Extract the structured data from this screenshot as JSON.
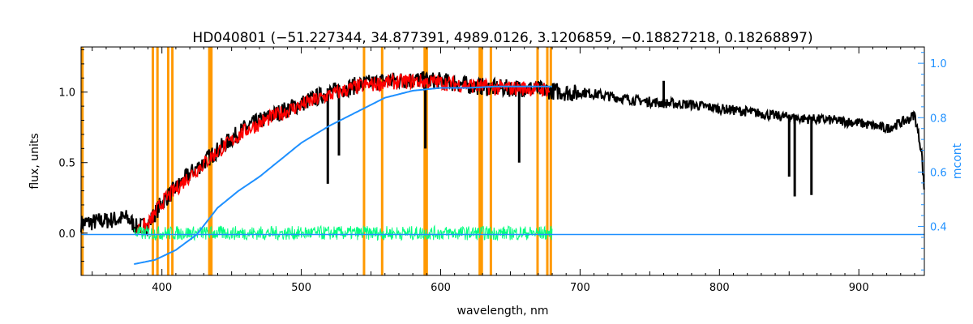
{
  "chart_data": {
    "type": "line",
    "title": "HD040801    (−51.227344, 34.877391, 4989.0126, 3.1206859, −0.18827218, 0.18268897)",
    "xlabel": "wavelength, nm",
    "ylabel": "flux, units",
    "y2label": "mcont",
    "xlim": [
      342,
      947
    ],
    "ylim": [
      -0.3,
      1.32
    ],
    "y2lim": [
      0.22,
      1.06
    ],
    "xticks": [
      400,
      500,
      600,
      700,
      800,
      900
    ],
    "yticks": [
      0.0,
      0.5,
      1.0
    ],
    "y2ticks": [
      0.4,
      0.6,
      0.8,
      1.0
    ],
    "ytick_labels": [
      "0.0",
      "0.5",
      "1.0"
    ],
    "y2tick_labels": [
      "0.4",
      "0.6",
      "0.8",
      "1.0"
    ],
    "grid": false,
    "colors": {
      "observed": "#000000",
      "model": "#ff0000",
      "residual": "#00ff7f",
      "continuum": "#1e90ff",
      "masks": "#ff9900",
      "right_axis": "#1e90ff"
    },
    "masked_lines_nm": [
      343,
      393.5,
      396.8,
      404.5,
      407.5,
      434,
      435.5,
      545,
      558,
      588.5,
      590,
      628,
      629.5,
      636,
      669.5,
      676.5,
      679
    ],
    "observed_envelope": {
      "x": [
        342,
        360,
        375,
        382,
        390,
        400,
        420,
        440,
        460,
        480,
        500,
        520,
        540,
        560,
        580,
        600,
        620,
        640,
        660,
        680,
        700,
        720,
        740,
        760,
        780,
        800,
        820,
        840,
        860,
        880,
        900,
        920,
        935,
        940,
        945,
        947
      ],
      "y": [
        0.1,
        0.12,
        0.14,
        0.07,
        0.09,
        0.25,
        0.45,
        0.62,
        0.78,
        0.87,
        0.95,
        1.03,
        1.08,
        1.11,
        1.12,
        1.11,
        1.08,
        1.06,
        1.06,
        1.04,
        1.02,
        0.99,
        0.96,
        0.94,
        0.93,
        0.9,
        0.88,
        0.85,
        0.83,
        0.82,
        0.8,
        0.76,
        0.82,
        0.86,
        0.6,
        0.3
      ]
    },
    "observed_deep_lines": [
      {
        "x": 519,
        "y": 0.35
      },
      {
        "x": 527,
        "y": 0.55
      },
      {
        "x": 589,
        "y": 0.6
      },
      {
        "x": 656.3,
        "y": 0.5
      },
      {
        "x": 760,
        "y": 1.08
      },
      {
        "x": 850,
        "y": 0.4
      },
      {
        "x": 854,
        "y": 0.26
      },
      {
        "x": 866,
        "y": 0.27
      }
    ],
    "model_envelope": {
      "x": [
        382,
        390,
        400,
        420,
        440,
        460,
        480,
        500,
        520,
        540,
        560,
        580,
        600,
        620,
        640,
        660,
        678
      ],
      "y": [
        0.05,
        0.08,
        0.24,
        0.43,
        0.6,
        0.75,
        0.85,
        0.93,
        1.0,
        1.06,
        1.09,
        1.1,
        1.09,
        1.07,
        1.05,
        1.05,
        1.04
      ]
    },
    "continuum": {
      "x": [
        380,
        395,
        410,
        425,
        440,
        455,
        470,
        485,
        500,
        520,
        540,
        560,
        580,
        600,
        620,
        640,
        660,
        680
      ],
      "y": [
        -0.22,
        -0.19,
        -0.12,
        -0.01,
        0.18,
        0.3,
        0.4,
        0.52,
        0.64,
        0.76,
        0.86,
        0.96,
        1.01,
        1.03,
        1.03,
        1.04,
        1.04,
        1.04
      ]
    },
    "continuum_zero_line": {
      "x": [
        342,
        947
      ],
      "y": [
        -0.01,
        -0.01
      ]
    },
    "residual_band": {
      "x_start": 380,
      "x_end": 680,
      "center": 0.0,
      "amplitude": 0.05
    }
  }
}
